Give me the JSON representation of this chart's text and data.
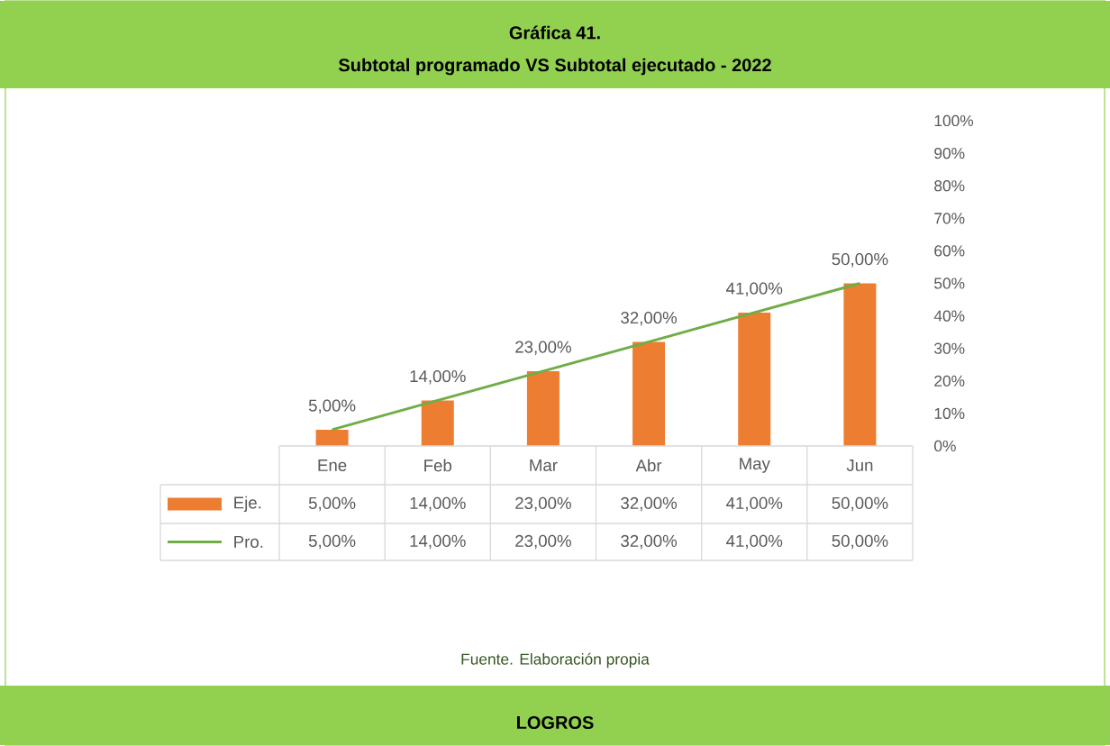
{
  "chart_data": {
    "type": "bar",
    "title": "Gráfica 41.",
    "subtitle": "Subtotal programado VS Subtotal ejecutado - 2022",
    "categories": [
      "Ene",
      "Feb",
      "Mar",
      "Abr",
      "May",
      "Jun"
    ],
    "series": [
      {
        "name": "Eje.",
        "color": "#ed7d31",
        "values": [
          5,
          14,
          23,
          32,
          41,
          50
        ],
        "value_labels": [
          "5,00%",
          "14,00%",
          "23,00%",
          "32,00%",
          "41,00%",
          "50,00%"
        ]
      },
      {
        "name": "Pro.",
        "type": "line",
        "color": "#70ad47",
        "values": [
          5,
          14,
          23,
          32,
          41,
          50
        ],
        "value_labels": [
          "5,00%",
          "14,00%",
          "23,00%",
          "32,00%",
          "41,00%",
          "50,00%"
        ]
      }
    ],
    "ylim": [
      0,
      100
    ],
    "yticks": [
      {
        "value": 0,
        "label": "0%"
      },
      {
        "value": 10,
        "label": "10%"
      },
      {
        "value": 20,
        "label": "20%"
      },
      {
        "value": 30,
        "label": "30%"
      },
      {
        "value": 40,
        "label": "40%"
      },
      {
        "value": 50,
        "label": "50%"
      },
      {
        "value": 60,
        "label": "60%"
      },
      {
        "value": 70,
        "label": "70%"
      },
      {
        "value": 80,
        "label": "80%"
      },
      {
        "value": 90,
        "label": "90%"
      },
      {
        "value": 100,
        "label": "100%"
      }
    ],
    "legend": "bottom",
    "grid": false,
    "annotations": [
      "Fuente. Elaboración propia",
      "LOGROS"
    ]
  }
}
